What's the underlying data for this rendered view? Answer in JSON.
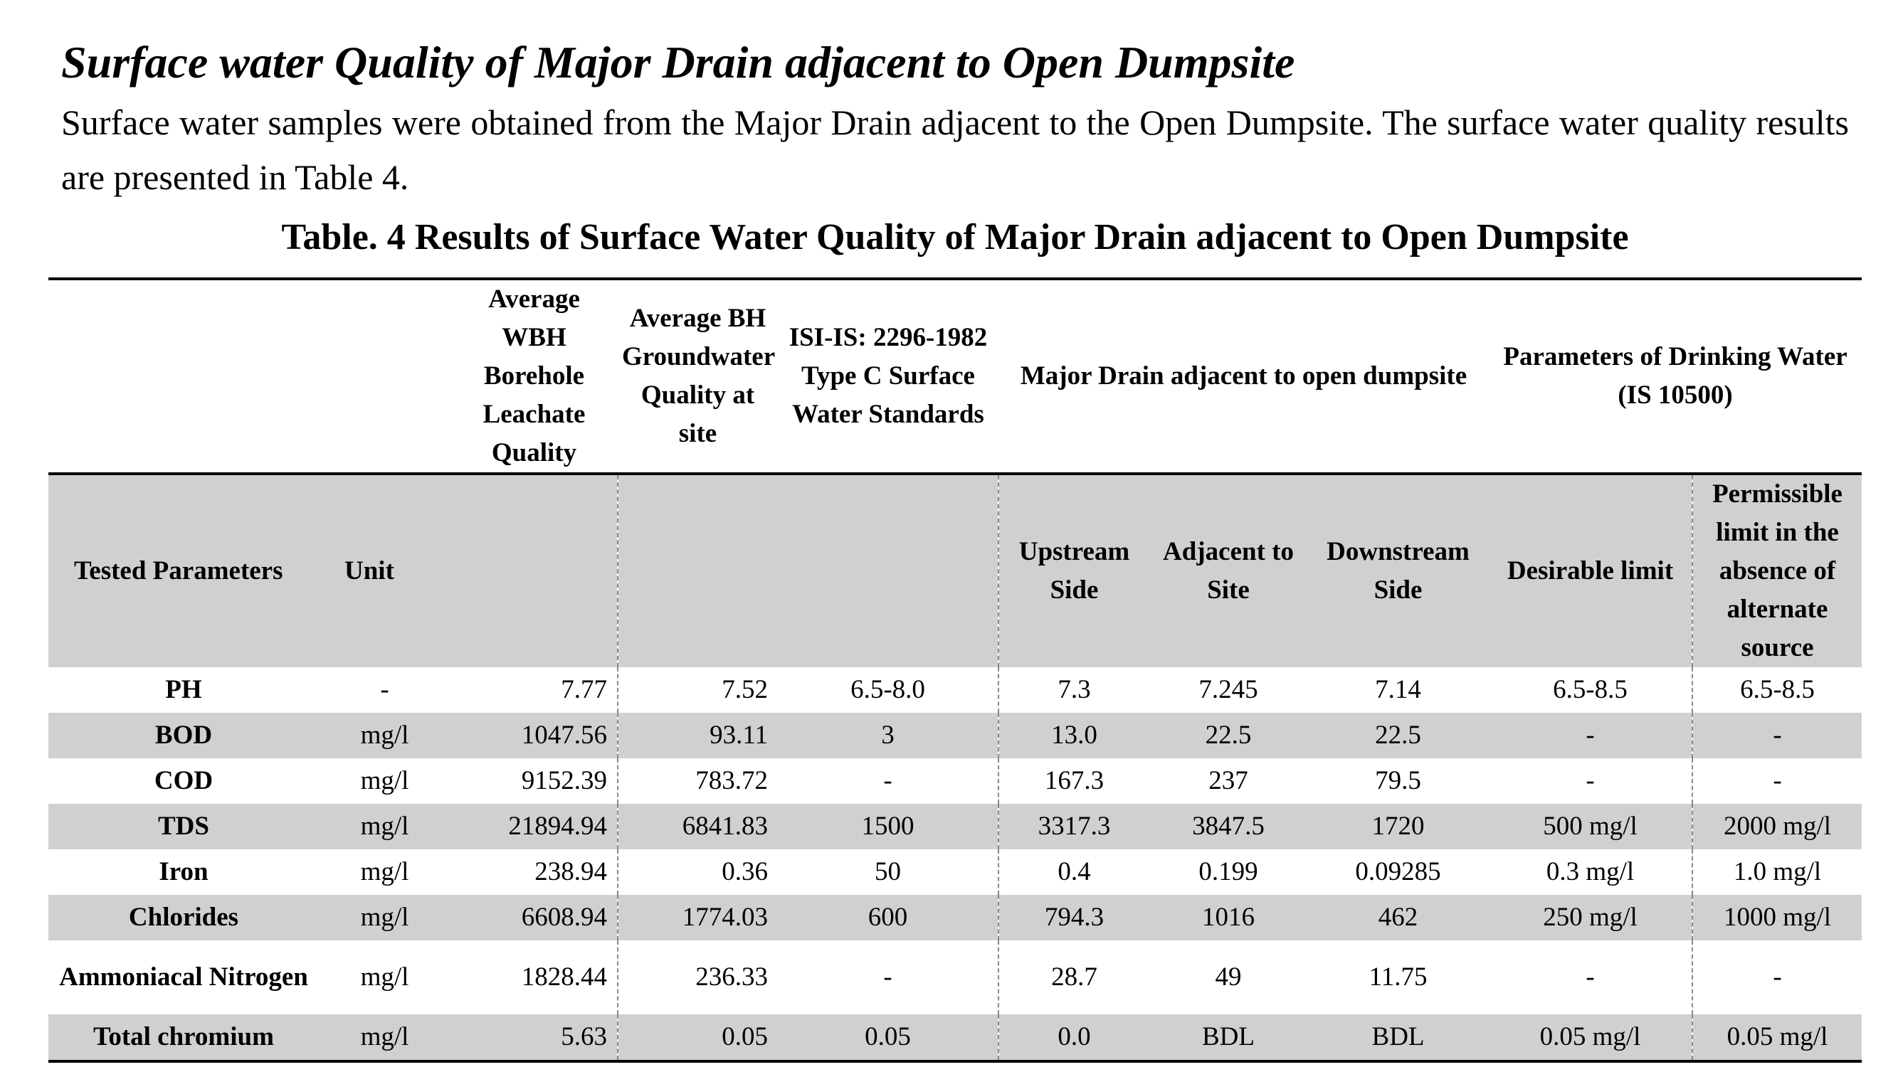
{
  "heading": "Surface water Quality of Major Drain adjacent to Open Dumpsite",
  "paragraph": "Surface water samples were obtained from the Major Drain adjacent to the Open Dumpsite. The surface water quality results are presented in Table 4.",
  "table": {
    "caption": "Table. 4 Results of Surface Water Quality of Major Drain adjacent to Open Dumpsite",
    "header_top": {
      "avg_wbh": "Average WBH Borehole Leachate Quality",
      "avg_bh": "Average BH Groundwater Quality at site",
      "isi": "ISI-IS: 2296-1982 Type C Surface Water Standards",
      "major_drain": "Major Drain adjacent to open dumpsite",
      "drinking": "Parameters of Drinking Water (IS 10500)"
    },
    "header_sub": {
      "tested": "Tested Parameters",
      "unit": "Unit",
      "upstream": "Upstream Side",
      "adjacent": "Adjacent to Site",
      "downstream": "Downstream Side",
      "desirable": "Desirable limit",
      "permissible": "Permissible limit in the absence of alternate source"
    },
    "rows": [
      {
        "param": "PH",
        "unit": "-",
        "wbh": "7.77",
        "bh": "7.52",
        "isi": "6.5-8.0",
        "up": "7.3",
        "adj": "7.245",
        "down": "7.14",
        "des": "6.5-8.5",
        "perm": "6.5-8.5"
      },
      {
        "param": "BOD",
        "unit": "mg/l",
        "wbh": "1047.56",
        "bh": "93.11",
        "isi": "3",
        "up": "13.0",
        "adj": "22.5",
        "down": "22.5",
        "des": "-",
        "perm": "-"
      },
      {
        "param": "COD",
        "unit": "mg/l",
        "wbh": "9152.39",
        "bh": "783.72",
        "isi": "-",
        "up": "167.3",
        "adj": "237",
        "down": "79.5",
        "des": "-",
        "perm": "-"
      },
      {
        "param": "TDS",
        "unit": "mg/l",
        "wbh": "21894.94",
        "bh": "6841.83",
        "isi": "1500",
        "up": "3317.3",
        "adj": "3847.5",
        "down": "1720",
        "des": "500 mg/l",
        "perm": "2000 mg/l"
      },
      {
        "param": "Iron",
        "unit": "mg/l",
        "wbh": "238.94",
        "bh": "0.36",
        "isi": "50",
        "up": "0.4",
        "adj": "0.199",
        "down": "0.09285",
        "des": "0.3 mg/l",
        "perm": "1.0 mg/l"
      },
      {
        "param": "Chlorides",
        "unit": "mg/l",
        "wbh": "6608.94",
        "bh": "1774.03",
        "isi": "600",
        "up": "794.3",
        "adj": "1016",
        "down": "462",
        "des": "250 mg/l",
        "perm": "1000 mg/l"
      },
      {
        "param": "Ammoniacal Nitrogen",
        "unit": "mg/l",
        "wbh": "1828.44",
        "bh": "236.33",
        "isi": "-",
        "up": "28.7",
        "adj": "49",
        "down": "11.75",
        "des": "-",
        "perm": "-"
      },
      {
        "param": "Total chromium",
        "unit": "mg/l",
        "wbh": "5.63",
        "bh": "0.05",
        "isi": "0.05",
        "up": "0.0",
        "adj": "BDL",
        "down": "BDL",
        "des": "0.05 mg/l",
        "perm": "0.05 mg/l"
      }
    ]
  }
}
